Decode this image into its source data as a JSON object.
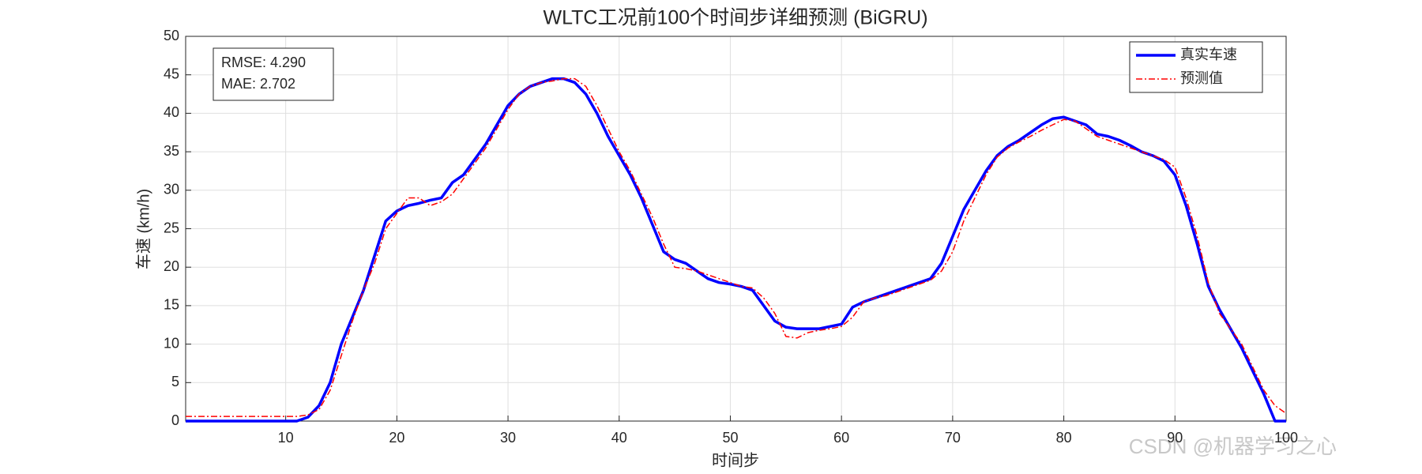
{
  "chart_data": {
    "type": "line",
    "title": "WLTC工况前100个时间步详细预测 (BiGRU)",
    "x_label": "时间步",
    "y_label": "车速 (km/h)",
    "annotations": [
      "RMSE: 4.290",
      "MAE: 2.702"
    ],
    "watermark": "CSDN @机器学习之心",
    "x": [
      1,
      2,
      3,
      4,
      5,
      6,
      7,
      8,
      9,
      10,
      11,
      12,
      13,
      14,
      15,
      16,
      17,
      18,
      19,
      20,
      21,
      22,
      23,
      24,
      25,
      26,
      27,
      28,
      29,
      30,
      31,
      32,
      33,
      34,
      35,
      36,
      37,
      38,
      39,
      40,
      41,
      42,
      43,
      44,
      45,
      46,
      47,
      48,
      49,
      50,
      51,
      52,
      53,
      54,
      55,
      56,
      57,
      58,
      59,
      60,
      61,
      62,
      63,
      64,
      65,
      66,
      67,
      68,
      69,
      70,
      71,
      72,
      73,
      74,
      75,
      76,
      77,
      78,
      79,
      80,
      81,
      82,
      83,
      84,
      85,
      86,
      87,
      88,
      89,
      90,
      91,
      92,
      93,
      94,
      95,
      96,
      97,
      98,
      99,
      100
    ],
    "series": [
      {
        "name": "真实车速",
        "color": "#0000ff",
        "dash": "solid",
        "width": 3.5,
        "values": [
          0,
          0,
          0,
          0,
          0,
          0,
          0,
          0,
          0,
          0,
          0,
          0.5,
          2,
          5,
          10,
          13.5,
          17,
          21.5,
          26,
          27.3,
          28,
          28.3,
          28.7,
          29,
          31,
          32,
          34,
          36,
          38.5,
          41,
          42.5,
          43.5,
          44,
          44.5,
          44.5,
          44,
          42.5,
          40,
          37,
          34.5,
          32,
          29,
          25.5,
          22,
          21,
          20.5,
          19.5,
          18.5,
          18,
          17.8,
          17.5,
          17,
          15,
          13,
          12.2,
          12,
          12,
          12,
          12.3,
          12.6,
          14.8,
          15.5,
          16,
          16.5,
          17,
          17.5,
          18,
          18.5,
          20.5,
          24,
          27.5,
          30,
          32.5,
          34.5,
          35.7,
          36.5,
          37.5,
          38.5,
          39.3,
          39.5,
          39,
          38.5,
          37.3,
          37,
          36.5,
          35.8,
          35,
          34.5,
          33.8,
          32,
          28,
          23,
          17.5,
          14.5,
          12,
          9.5,
          6.5,
          3.5,
          0,
          0
        ]
      },
      {
        "name": "预测值",
        "color": "#ff0000",
        "dash": "dashdot",
        "width": 1.5,
        "values": [
          0.6,
          0.6,
          0.6,
          0.6,
          0.6,
          0.6,
          0.6,
          0.6,
          0.6,
          0.6,
          0.6,
          0.8,
          1.5,
          4,
          8.5,
          13,
          17,
          20.5,
          25,
          27,
          29,
          29,
          28,
          28.5,
          29.5,
          31.5,
          33.5,
          35.5,
          38,
          40.5,
          42.5,
          43.5,
          44,
          44.2,
          44.5,
          44.5,
          43.5,
          41,
          38,
          35,
          32.5,
          29.5,
          26.5,
          23,
          20,
          19.8,
          19.5,
          19,
          18.5,
          18,
          17.5,
          17.3,
          16,
          14,
          11,
          10.8,
          11.5,
          11.8,
          12,
          12.3,
          13.5,
          15.5,
          16,
          16.3,
          16.8,
          17.3,
          17.8,
          18.3,
          19.5,
          22,
          26,
          29,
          32,
          34.3,
          35.5,
          36.3,
          37,
          37.8,
          38.5,
          39.2,
          39,
          38,
          37,
          36.5,
          36,
          35.5,
          35,
          34.5,
          34,
          33,
          29,
          24,
          18,
          14,
          12,
          10,
          7,
          4,
          2,
          1
        ]
      }
    ],
    "xlim": [
      1,
      100
    ],
    "xticks": [
      10,
      20,
      30,
      40,
      50,
      60,
      70,
      80,
      90,
      100
    ],
    "ylim": [
      0,
      50
    ],
    "yticks": [
      0,
      5,
      10,
      15,
      20,
      25,
      30,
      35,
      40,
      45,
      50
    ],
    "grid": true,
    "legend": "upper right"
  }
}
